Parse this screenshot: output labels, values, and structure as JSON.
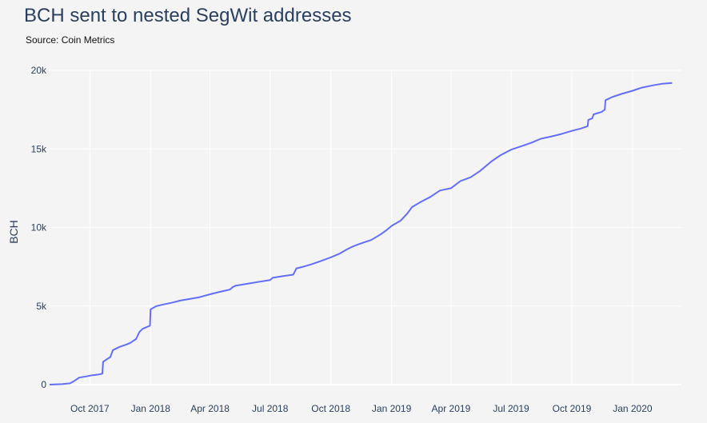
{
  "chart_data": {
    "type": "line",
    "title": "BCH sent to nested SegWit addresses",
    "subtitle": "Source: Coin Metrics",
    "xlabel": "",
    "ylabel": "BCH",
    "ylim": [
      0,
      20000
    ],
    "y_ticks": [
      {
        "value": 0,
        "label": "0"
      },
      {
        "value": 5000,
        "label": "5k"
      },
      {
        "value": 10000,
        "label": "10k"
      },
      {
        "value": 15000,
        "label": "15k"
      },
      {
        "value": 20000,
        "label": "20k"
      }
    ],
    "x_range": [
      "2017-08-01",
      "2020-03-15"
    ],
    "x_ticks": [
      {
        "date": "2017-10-01",
        "label": "Oct 2017"
      },
      {
        "date": "2018-01-01",
        "label": "Jan 2018"
      },
      {
        "date": "2018-04-01",
        "label": "Apr 2018"
      },
      {
        "date": "2018-07-01",
        "label": "Jul 2018"
      },
      {
        "date": "2018-10-01",
        "label": "Oct 2018"
      },
      {
        "date": "2019-01-01",
        "label": "Jan 2019"
      },
      {
        "date": "2019-04-01",
        "label": "Apr 2019"
      },
      {
        "date": "2019-07-01",
        "label": "Jul 2019"
      },
      {
        "date": "2019-10-01",
        "label": "Oct 2019"
      },
      {
        "date": "2020-01-01",
        "label": "Jan 2020"
      }
    ],
    "grid": true,
    "series": [
      {
        "color": "#636efa",
        "x": [
          "2017-08-01",
          "2017-08-20",
          "2017-09-01",
          "2017-09-08",
          "2017-09-15",
          "2017-09-25",
          "2017-10-05",
          "2017-10-15",
          "2017-10-20",
          "2017-10-21",
          "2017-10-28",
          "2017-11-01",
          "2017-11-05",
          "2017-11-15",
          "2017-11-25",
          "2017-12-01",
          "2017-12-10",
          "2017-12-15",
          "2017-12-20",
          "2017-12-31",
          "2018-01-01",
          "2018-01-10",
          "2018-01-20",
          "2018-02-01",
          "2018-02-15",
          "2018-03-01",
          "2018-03-15",
          "2018-04-01",
          "2018-04-15",
          "2018-05-01",
          "2018-05-05",
          "2018-05-10",
          "2018-06-01",
          "2018-06-15",
          "2018-07-01",
          "2018-07-05",
          "2018-07-20",
          "2018-08-05",
          "2018-08-10",
          "2018-08-20",
          "2018-09-01",
          "2018-09-15",
          "2018-10-01",
          "2018-10-15",
          "2018-10-25",
          "2018-11-01",
          "2018-11-10",
          "2018-11-20",
          "2018-12-01",
          "2018-12-15",
          "2018-12-25",
          "2019-01-01",
          "2019-01-15",
          "2019-01-25",
          "2019-02-01",
          "2019-02-15",
          "2019-03-01",
          "2019-03-15",
          "2019-04-01",
          "2019-04-15",
          "2019-05-01",
          "2019-05-15",
          "2019-06-01",
          "2019-06-15",
          "2019-07-01",
          "2019-07-15",
          "2019-08-01",
          "2019-08-15",
          "2019-09-01",
          "2019-09-15",
          "2019-10-01",
          "2019-10-15",
          "2019-10-25",
          "2019-10-26",
          "2019-11-01",
          "2019-11-03",
          "2019-11-15",
          "2019-11-20",
          "2019-11-21",
          "2019-12-01",
          "2019-12-15",
          "2020-01-01",
          "2020-01-15",
          "2020-02-01",
          "2020-02-15",
          "2020-03-01"
        ],
        "y": [
          0,
          30,
          80,
          250,
          450,
          520,
          600,
          650,
          700,
          1450,
          1650,
          1750,
          2200,
          2400,
          2550,
          2650,
          2900,
          3350,
          3550,
          3750,
          4800,
          5000,
          5100,
          5200,
          5350,
          5450,
          5550,
          5750,
          5900,
          6050,
          6200,
          6300,
          6450,
          6550,
          6650,
          6800,
          6900,
          7000,
          7400,
          7500,
          7650,
          7850,
          8100,
          8350,
          8600,
          8750,
          8900,
          9050,
          9200,
          9550,
          9850,
          10100,
          10450,
          10900,
          11300,
          11650,
          11950,
          12350,
          12500,
          12950,
          13200,
          13600,
          14200,
          14600,
          14950,
          15150,
          15400,
          15650,
          15800,
          15950,
          16150,
          16300,
          16450,
          16850,
          16950,
          17200,
          17350,
          17500,
          18100,
          18300,
          18500,
          18700,
          18900,
          19050,
          19150,
          19200
        ]
      }
    ]
  }
}
